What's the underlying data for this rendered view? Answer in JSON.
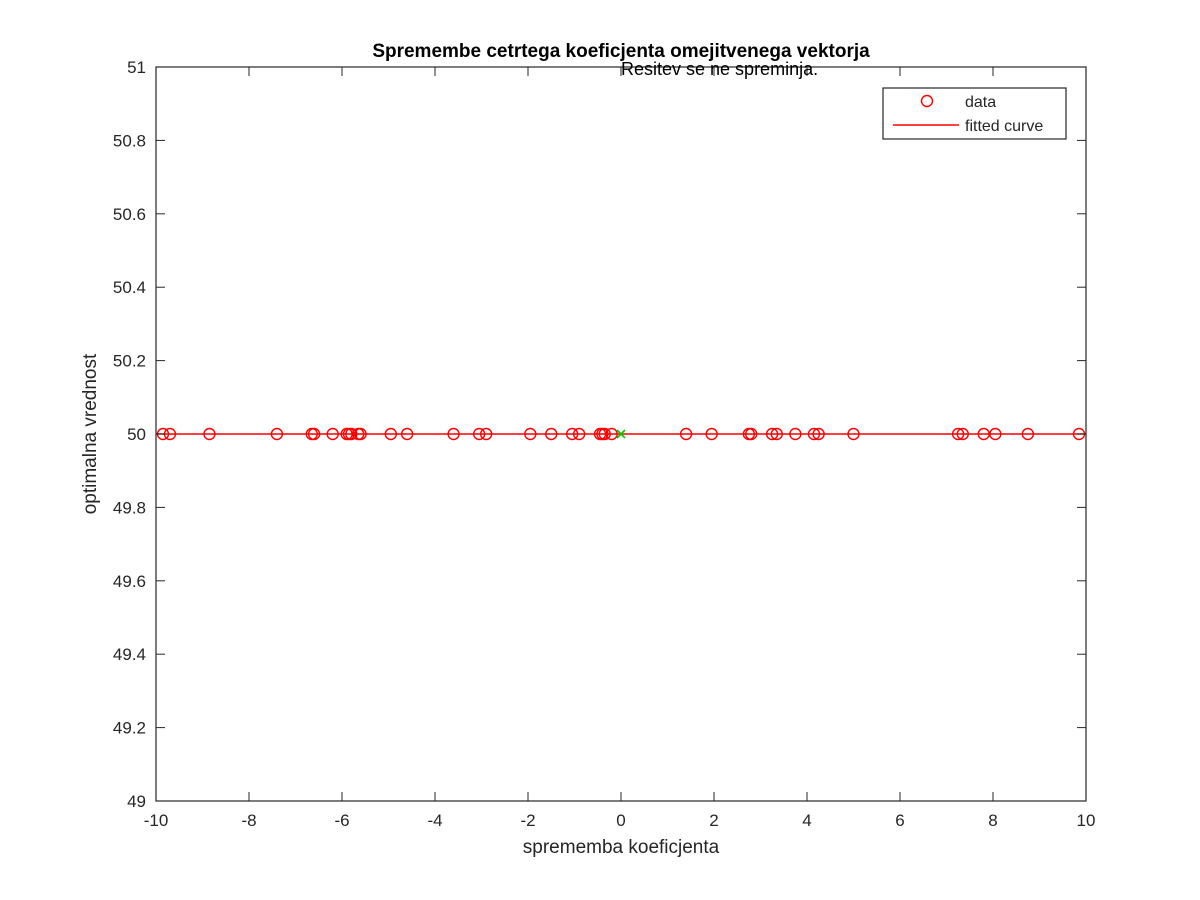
{
  "chart_data": {
    "type": "scatter",
    "title": "Spremembe cetrtega koeficjenta omejitvenega vektorja",
    "annotation": "Resitev se ne spreminja.",
    "xlabel": "sprememba koeficjenta",
    "ylabel": "optimalna vrednost",
    "xlim": [
      -10,
      10
    ],
    "ylim": [
      49,
      51
    ],
    "xticks": [
      -10,
      -8,
      -6,
      -4,
      -2,
      0,
      2,
      4,
      6,
      8,
      10
    ],
    "yticks": [
      49,
      49.2,
      49.4,
      49.6,
      49.8,
      50,
      50.2,
      50.4,
      50.6,
      50.8,
      51
    ],
    "grid": false,
    "legend_position": "top-right",
    "series": [
      {
        "name": "data",
        "marker": "circle",
        "color": "#ff0000",
        "x": [
          -9.85,
          -9.7,
          -8.85,
          -7.4,
          -6.65,
          -6.6,
          -6.2,
          -5.9,
          -5.85,
          -5.8,
          -5.65,
          -5.6,
          -4.95,
          -4.6,
          -3.6,
          -3.05,
          -2.9,
          -1.95,
          -1.5,
          -1.05,
          -0.9,
          -0.45,
          -0.4,
          -0.35,
          -0.2,
          1.4,
          1.95,
          2.75,
          2.8,
          3.25,
          3.35,
          3.75,
          4.15,
          4.25,
          5.0,
          7.25,
          7.35,
          7.8,
          8.05,
          8.75,
          9.85
        ],
        "y": [
          50,
          50,
          50,
          50,
          50,
          50,
          50,
          50,
          50,
          50,
          50,
          50,
          50,
          50,
          50,
          50,
          50,
          50,
          50,
          50,
          50,
          50,
          50,
          50,
          50,
          50,
          50,
          50,
          50,
          50,
          50,
          50,
          50,
          50,
          50,
          50,
          50,
          50,
          50,
          50,
          50
        ]
      },
      {
        "name": "fitted curve",
        "marker": "line",
        "color": "#ff0000",
        "x": [
          -10,
          10
        ],
        "y": [
          50,
          50
        ]
      }
    ],
    "highlight_point": {
      "x": 0,
      "y": 50,
      "marker": "x",
      "color": "#00c800"
    }
  }
}
